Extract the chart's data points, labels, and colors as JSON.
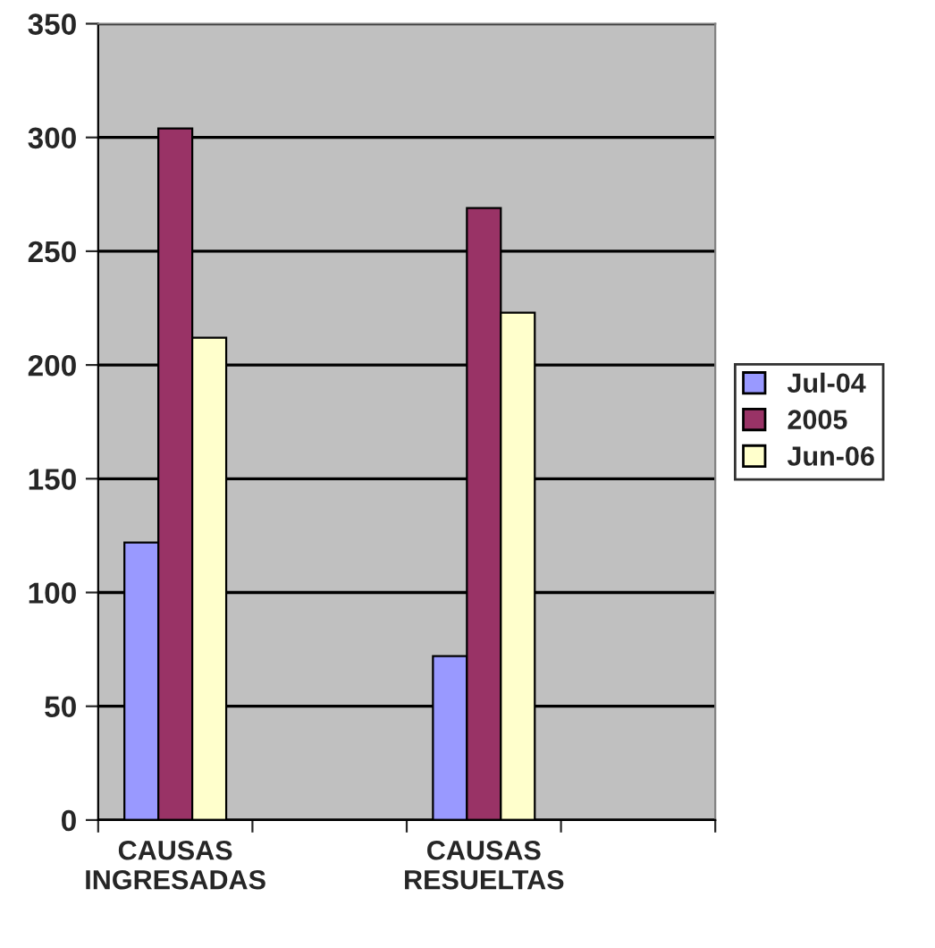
{
  "chart_data": {
    "type": "bar",
    "categories": [
      "CAUSAS\nINGRESADAS",
      null,
      "CAUSAS\nRESUELTAS",
      null
    ],
    "series": [
      {
        "name": "Jul-04",
        "color": "#9999ff",
        "values": [
          122,
          null,
          72,
          null
        ]
      },
      {
        "name": "2005",
        "color": "#993366",
        "values": [
          304,
          null,
          269,
          null
        ]
      },
      {
        "name": "Jun-06",
        "color": "#ffffcc",
        "values": [
          212,
          null,
          223,
          null
        ]
      }
    ],
    "ylim": [
      0,
      350
    ],
    "yticks": [
      0,
      50,
      100,
      150,
      200,
      250,
      300,
      350
    ],
    "grid": "y",
    "legend": "right"
  }
}
